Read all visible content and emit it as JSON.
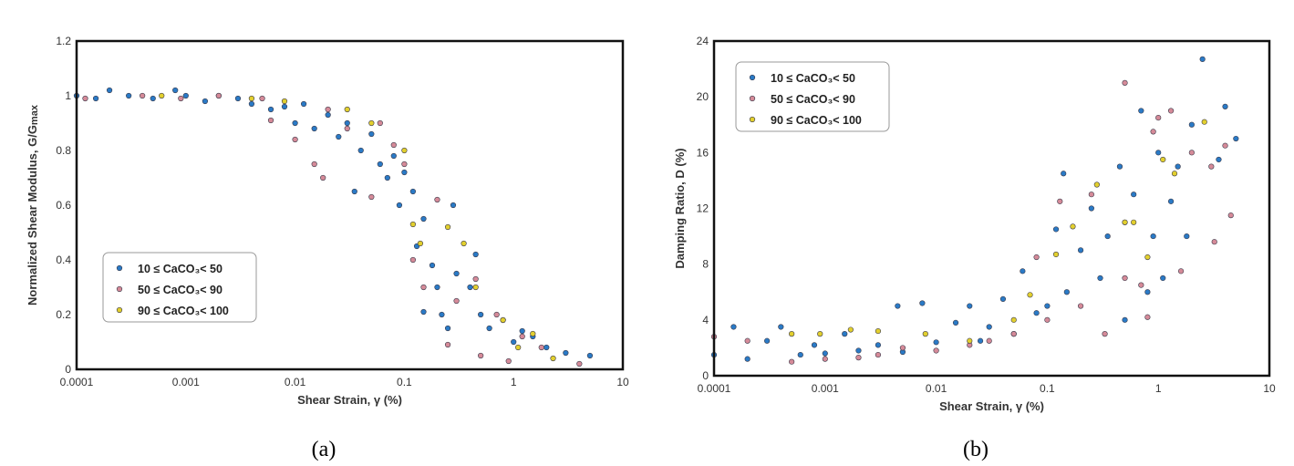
{
  "colors": {
    "series_1": "#2a7ac6",
    "series_2": "#d58a98",
    "series_3": "#e2cf2e",
    "edge": "#3a3a4a"
  },
  "chart_data": [
    {
      "type": "scatter",
      "caption": "(a)",
      "xlabel": "Shear Strain, γ (%)",
      "ylabel": "Normalized Shear Modulus, G/G",
      "ylabel_sub": "max",
      "xscale": "log",
      "xlim": [
        0.0001,
        10
      ],
      "ylim": [
        0,
        1.2
      ],
      "xticks": [
        "0.0001",
        "0.001",
        "0.01",
        "0.1",
        "1",
        "10"
      ],
      "yticks": [
        "0",
        "0.2",
        "0.4",
        "0.6",
        "0.8",
        "1",
        "1.2"
      ],
      "grid": false,
      "legend_position": "center-left",
      "series": [
        {
          "name": "10 ≤ CaCO₃< 50",
          "color": "#2a7ac6",
          "points": [
            [
              0.0001,
              1
            ],
            [
              0.00015,
              0.99
            ],
            [
              0.0002,
              1.02
            ],
            [
              0.0003,
              1
            ],
            [
              0.0005,
              0.99
            ],
            [
              0.0008,
              1.02
            ],
            [
              0.001,
              1.0
            ],
            [
              0.0015,
              0.98
            ],
            [
              0.002,
              1.0
            ],
            [
              0.003,
              0.99
            ],
            [
              0.004,
              0.97
            ],
            [
              0.006,
              0.95
            ],
            [
              0.008,
              0.96
            ],
            [
              0.01,
              0.9
            ],
            [
              0.012,
              0.97
            ],
            [
              0.015,
              0.88
            ],
            [
              0.02,
              0.93
            ],
            [
              0.025,
              0.85
            ],
            [
              0.03,
              0.9
            ],
            [
              0.035,
              0.65
            ],
            [
              0.04,
              0.8
            ],
            [
              0.05,
              0.86
            ],
            [
              0.06,
              0.75
            ],
            [
              0.07,
              0.7
            ],
            [
              0.08,
              0.78
            ],
            [
              0.09,
              0.6
            ],
            [
              0.1,
              0.72
            ],
            [
              0.12,
              0.65
            ],
            [
              0.13,
              0.45
            ],
            [
              0.15,
              0.55
            ],
            [
              0.15,
              0.21
            ],
            [
              0.18,
              0.38
            ],
            [
              0.2,
              0.3
            ],
            [
              0.22,
              0.2
            ],
            [
              0.25,
              0.15
            ],
            [
              0.28,
              0.6
            ],
            [
              0.3,
              0.35
            ],
            [
              0.4,
              0.3
            ],
            [
              0.45,
              0.42
            ],
            [
              0.5,
              0.2
            ],
            [
              0.6,
              0.15
            ],
            [
              0.8,
              0.18
            ],
            [
              1,
              0.1
            ],
            [
              1.2,
              0.14
            ],
            [
              1.5,
              0.12
            ],
            [
              2,
              0.08
            ],
            [
              3,
              0.06
            ],
            [
              5,
              0.05
            ]
          ]
        },
        {
          "name": "50 ≤ CaCO₃< 90",
          "color": "#d58a98",
          "points": [
            [
              0.00012,
              0.99
            ],
            [
              0.0004,
              1
            ],
            [
              0.0009,
              0.99
            ],
            [
              0.002,
              1
            ],
            [
              0.005,
              0.99
            ],
            [
              0.006,
              0.91
            ],
            [
              0.01,
              0.84
            ],
            [
              0.015,
              0.75
            ],
            [
              0.018,
              0.7
            ],
            [
              0.02,
              0.95
            ],
            [
              0.03,
              0.88
            ],
            [
              0.05,
              0.63
            ],
            [
              0.06,
              0.9
            ],
            [
              0.08,
              0.82
            ],
            [
              0.1,
              0.75
            ],
            [
              0.12,
              0.4
            ],
            [
              0.15,
              0.3
            ],
            [
              0.2,
              0.62
            ],
            [
              0.25,
              0.09
            ],
            [
              0.3,
              0.25
            ],
            [
              0.45,
              0.33
            ],
            [
              0.5,
              0.05
            ],
            [
              0.7,
              0.2
            ],
            [
              0.9,
              0.03
            ],
            [
              1.2,
              0.12
            ],
            [
              1.8,
              0.08
            ],
            [
              4,
              0.02
            ]
          ]
        },
        {
          "name": "90 ≤ CaCO₃< 100",
          "color": "#e2cf2e",
          "points": [
            [
              0.0006,
              1
            ],
            [
              0.004,
              0.99
            ],
            [
              0.008,
              0.98
            ],
            [
              0.03,
              0.95
            ],
            [
              0.05,
              0.9
            ],
            [
              0.1,
              0.8
            ],
            [
              0.12,
              0.53
            ],
            [
              0.14,
              0.46
            ],
            [
              0.25,
              0.52
            ],
            [
              0.35,
              0.46
            ],
            [
              0.45,
              0.3
            ],
            [
              0.8,
              0.18
            ],
            [
              1.1,
              0.08
            ],
            [
              1.5,
              0.13
            ],
            [
              2.3,
              0.04
            ]
          ]
        }
      ]
    },
    {
      "type": "scatter",
      "caption": "(b)",
      "xlabel": "Shear Strain, γ (%)",
      "ylabel": "Damping Ratio, D (%)",
      "ylabel_sub": "",
      "xscale": "log",
      "xlim": [
        0.0001,
        10
      ],
      "ylim": [
        0,
        24
      ],
      "xticks": [
        "0.0001",
        "0.001",
        "0.01",
        "0.1",
        "1",
        "10"
      ],
      "yticks": [
        "0",
        "4",
        "8",
        "12",
        "16",
        "20",
        "24"
      ],
      "grid": false,
      "legend_position": "top-left",
      "series": [
        {
          "name": "10 ≤ CaCO₃< 50",
          "color": "#2a7ac6",
          "points": [
            [
              0.0001,
              1.5
            ],
            [
              0.00015,
              3.5
            ],
            [
              0.0002,
              1.2
            ],
            [
              0.0003,
              2.5
            ],
            [
              0.0004,
              3.5
            ],
            [
              0.0006,
              1.5
            ],
            [
              0.0008,
              2.2
            ],
            [
              0.001,
              1.6
            ],
            [
              0.0015,
              3
            ],
            [
              0.002,
              1.8
            ],
            [
              0.003,
              2.2
            ],
            [
              0.0045,
              5
            ],
            [
              0.005,
              1.7
            ],
            [
              0.0075,
              5.2
            ],
            [
              0.01,
              2.4
            ],
            [
              0.015,
              3.8
            ],
            [
              0.02,
              5
            ],
            [
              0.025,
              2.5
            ],
            [
              0.03,
              3.5
            ],
            [
              0.04,
              5.5
            ],
            [
              0.05,
              3
            ],
            [
              0.06,
              7.5
            ],
            [
              0.08,
              4.5
            ],
            [
              0.1,
              5
            ],
            [
              0.12,
              10.5
            ],
            [
              0.14,
              14.5
            ],
            [
              0.15,
              6
            ],
            [
              0.2,
              9
            ],
            [
              0.25,
              12
            ],
            [
              0.3,
              7
            ],
            [
              0.35,
              10
            ],
            [
              0.45,
              15
            ],
            [
              0.5,
              4
            ],
            [
              0.5,
              11
            ],
            [
              0.6,
              13
            ],
            [
              0.7,
              19
            ],
            [
              0.8,
              6
            ],
            [
              0.9,
              10
            ],
            [
              1,
              16
            ],
            [
              1.1,
              7
            ],
            [
              1.3,
              12.5
            ],
            [
              1.5,
              15
            ],
            [
              1.8,
              10
            ],
            [
              2,
              18
            ],
            [
              2.5,
              22.7
            ],
            [
              3.5,
              15.5
            ],
            [
              4,
              19.3
            ],
            [
              5,
              17
            ]
          ]
        },
        {
          "name": "50 ≤ CaCO₃< 90",
          "color": "#d58a98",
          "points": [
            [
              0.0001,
              2.8
            ],
            [
              0.0002,
              2.5
            ],
            [
              0.0005,
              1
            ],
            [
              0.001,
              1.2
            ],
            [
              0.002,
              1.3
            ],
            [
              0.003,
              1.5
            ],
            [
              0.005,
              2
            ],
            [
              0.01,
              1.8
            ],
            [
              0.02,
              2.2
            ],
            [
              0.03,
              2.5
            ],
            [
              0.05,
              3
            ],
            [
              0.08,
              8.5
            ],
            [
              0.1,
              4
            ],
            [
              0.13,
              12.5
            ],
            [
              0.2,
              5
            ],
            [
              0.25,
              13
            ],
            [
              0.33,
              3
            ],
            [
              0.5,
              21
            ],
            [
              0.5,
              7
            ],
            [
              0.7,
              6.5
            ],
            [
              0.8,
              4.2
            ],
            [
              0.9,
              17.5
            ],
            [
              1,
              18.5
            ],
            [
              1.3,
              19
            ],
            [
              1.6,
              7.5
            ],
            [
              2,
              16
            ],
            [
              3,
              15
            ],
            [
              3.2,
              9.6
            ],
            [
              4,
              16.5
            ],
            [
              4.5,
              11.5
            ]
          ]
        },
        {
          "name": "90 ≤ CaCO₃< 100",
          "color": "#e2cf2e",
          "points": [
            [
              0.0005,
              3
            ],
            [
              0.0009,
              3
            ],
            [
              0.0017,
              3.3
            ],
            [
              0.003,
              3.2
            ],
            [
              0.008,
              3
            ],
            [
              0.02,
              2.5
            ],
            [
              0.05,
              4
            ],
            [
              0.07,
              5.8
            ],
            [
              0.12,
              8.7
            ],
            [
              0.17,
              10.7
            ],
            [
              0.28,
              13.7
            ],
            [
              0.5,
              11
            ],
            [
              0.6,
              11
            ],
            [
              0.8,
              8.5
            ],
            [
              1.1,
              15.5
            ],
            [
              1.4,
              14.5
            ],
            [
              2.6,
              18.2
            ]
          ]
        }
      ]
    }
  ]
}
